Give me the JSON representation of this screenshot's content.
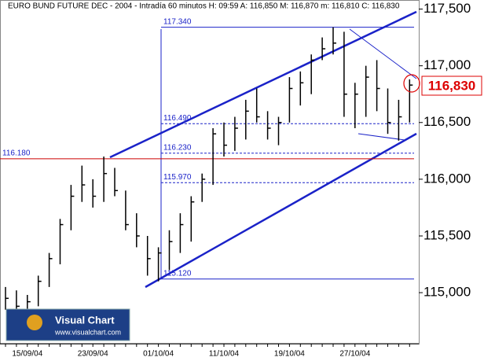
{
  "chart_data": {
    "type": "ohlc",
    "title": "EURO BUND FUTURE  DEC - 2004 - Intradía 60 minutos H: 09:59  A: 116,850  M: 116,870  m: 116,810  C: 116,830",
    "categories": [
      null,
      null,
      "15/09/04",
      null,
      null,
      null,
      null,
      null,
      "23/09/04",
      null,
      null,
      null,
      null,
      null,
      "01/10/04",
      null,
      null,
      null,
      null,
      null,
      "11/10/04",
      null,
      null,
      null,
      null,
      null,
      "19/10/04",
      null,
      null,
      null,
      null,
      null,
      "27/10/04",
      null,
      null,
      null,
      null,
      null
    ],
    "low": [
      114.85,
      114.8,
      114.78,
      114.88,
      115.05,
      115.25,
      115.55,
      115.8,
      115.75,
      115.8,
      115.85,
      115.55,
      115.4,
      115.15,
      115.1,
      115.2,
      115.35,
      115.45,
      115.8,
      115.95,
      116.2,
      116.25,
      116.35,
      116.5,
      116.35,
      116.3,
      116.5,
      116.65,
      116.75,
      117.05,
      117.1,
      116.55,
      116.45,
      116.55,
      116.6,
      116.4,
      116.34,
      116.5
    ],
    "high": [
      115.05,
      115.02,
      114.98,
      115.15,
      115.35,
      115.65,
      115.95,
      116.12,
      116.0,
      116.2,
      116.1,
      115.9,
      115.7,
      115.5,
      115.4,
      115.55,
      115.7,
      115.85,
      116.05,
      116.45,
      116.5,
      116.55,
      116.7,
      116.8,
      116.6,
      116.55,
      116.9,
      116.95,
      117.1,
      117.25,
      117.34,
      117.3,
      116.85,
      117.0,
      117.05,
      116.8,
      116.7,
      116.88
    ],
    "close": [
      114.95,
      114.88,
      114.92,
      115.1,
      115.3,
      115.6,
      115.85,
      115.95,
      115.85,
      116.05,
      115.9,
      115.6,
      115.5,
      115.3,
      115.35,
      115.45,
      115.6,
      115.8,
      116.0,
      116.4,
      116.3,
      116.45,
      116.6,
      116.55,
      116.45,
      116.5,
      116.8,
      116.85,
      117.05,
      117.15,
      117.2,
      116.75,
      116.75,
      116.9,
      116.8,
      116.5,
      116.55,
      116.83
    ],
    "color": "#000000",
    "ylim": [
      114.55,
      117.58
    ],
    "yticks": [
      {
        "value": 115,
        "label": "115,000"
      },
      {
        "value": 115.5,
        "label": "115,500"
      },
      {
        "value": 116,
        "label": "116,000"
      },
      {
        "value": 116.5,
        "label": "116,500"
      },
      {
        "value": 117,
        "label": "117,000"
      },
      {
        "value": 117.5,
        "label": "117,500"
      }
    ],
    "levels": [
      {
        "value": 117.34,
        "label": "117.340"
      },
      {
        "value": 116.49,
        "label": "116.490"
      },
      {
        "value": 116.23,
        "label": "116.230"
      },
      {
        "value": 115.97,
        "label": "115.970"
      },
      {
        "value": 115.12,
        "label": "115.120"
      },
      {
        "value": 116.18,
        "label": "116.180"
      }
    ],
    "last_price": {
      "value": 116.83,
      "label": "116,830"
    },
    "logo": {
      "name": "Visual Chart",
      "url": "www.visualchart.com"
    }
  }
}
